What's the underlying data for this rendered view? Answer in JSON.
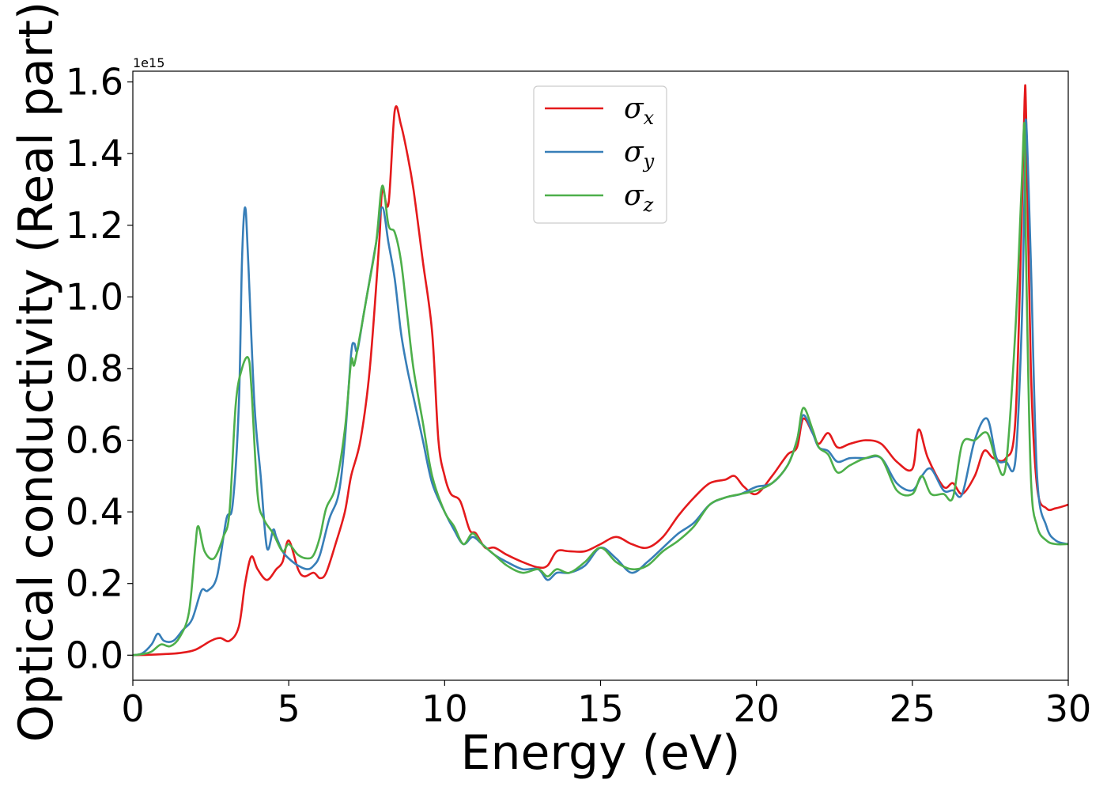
{
  "chart_data": {
    "type": "line",
    "xlabel": "Energy (eV)",
    "ylabel": "Optical conductivity (Real part)",
    "y_offset_label": "1e15",
    "xlim": [
      0,
      30
    ],
    "ylim": [
      -0.07,
      1.63
    ],
    "xticks": [
      0,
      5,
      10,
      15,
      20,
      25,
      30
    ],
    "xtick_labels": [
      "0",
      "5",
      "10",
      "15",
      "20",
      "25",
      "30"
    ],
    "yticks": [
      0.0,
      0.2,
      0.4,
      0.6,
      0.8,
      1.0,
      1.2,
      1.4,
      1.6
    ],
    "ytick_labels": [
      "0.0",
      "0.2",
      "0.4",
      "0.6",
      "0.8",
      "1.0",
      "1.2",
      "1.4",
      "1.6"
    ],
    "grid": false,
    "legend_position": "top-center",
    "series": [
      {
        "name": "σx",
        "symbol": "σ",
        "subscript": "x",
        "color": "#e41a1c",
        "x": [
          0,
          0.5,
          1,
          1.5,
          2,
          2.5,
          2.8,
          3.1,
          3.4,
          3.6,
          3.8,
          4.0,
          4.3,
          4.6,
          4.8,
          5.0,
          5.3,
          5.5,
          5.8,
          6.0,
          6.2,
          6.5,
          6.8,
          7.0,
          7.3,
          7.6,
          7.9,
          8.0,
          8.2,
          8.4,
          8.6,
          8.8,
          9.0,
          9.3,
          9.6,
          9.8,
          10.0,
          10.2,
          10.5,
          10.8,
          11.0,
          11.3,
          11.6,
          12.0,
          12.5,
          13.0,
          13.3,
          13.6,
          14.0,
          14.5,
          15.0,
          15.5,
          16.0,
          16.5,
          17.0,
          17.5,
          18.0,
          18.5,
          19.0,
          19.3,
          19.6,
          20.0,
          20.5,
          21.0,
          21.3,
          21.5,
          21.8,
          22.0,
          22.3,
          22.6,
          23.0,
          23.5,
          24.0,
          24.5,
          25.0,
          25.2,
          25.5,
          26.0,
          26.3,
          26.6,
          27.0,
          27.3,
          27.6,
          28.0,
          28.3,
          28.5,
          28.6,
          28.65,
          28.8,
          29.0,
          29.3,
          29.6,
          30.0
        ],
        "y": [
          0,
          0.001,
          0.003,
          0.006,
          0.015,
          0.04,
          0.048,
          0.04,
          0.08,
          0.2,
          0.275,
          0.24,
          0.21,
          0.24,
          0.26,
          0.32,
          0.24,
          0.22,
          0.23,
          0.215,
          0.23,
          0.31,
          0.4,
          0.5,
          0.6,
          0.8,
          1.15,
          1.3,
          1.26,
          1.52,
          1.48,
          1.4,
          1.3,
          1.1,
          0.9,
          0.6,
          0.5,
          0.45,
          0.43,
          0.35,
          0.34,
          0.3,
          0.3,
          0.28,
          0.26,
          0.245,
          0.25,
          0.29,
          0.29,
          0.29,
          0.31,
          0.33,
          0.31,
          0.3,
          0.33,
          0.39,
          0.44,
          0.48,
          0.49,
          0.5,
          0.47,
          0.45,
          0.5,
          0.56,
          0.58,
          0.66,
          0.62,
          0.59,
          0.62,
          0.58,
          0.59,
          0.6,
          0.59,
          0.54,
          0.52,
          0.63,
          0.55,
          0.47,
          0.48,
          0.45,
          0.5,
          0.57,
          0.55,
          0.55,
          0.65,
          1.2,
          1.55,
          1.5,
          0.8,
          0.47,
          0.41,
          0.41,
          0.42
        ]
      },
      {
        "name": "σy",
        "symbol": "σ",
        "subscript": "y",
        "color": "#377eb8",
        "x": [
          0,
          0.3,
          0.6,
          0.8,
          1.0,
          1.3,
          1.6,
          1.9,
          2.2,
          2.4,
          2.7,
          3.0,
          3.2,
          3.4,
          3.5,
          3.6,
          3.7,
          3.9,
          4.1,
          4.3,
          4.5,
          4.6,
          4.8,
          5.0,
          5.3,
          5.6,
          5.8,
          6.0,
          6.3,
          6.6,
          6.8,
          7.0,
          7.1,
          7.2,
          7.4,
          7.6,
          7.8,
          8.0,
          8.2,
          8.4,
          8.6,
          8.8,
          9.0,
          9.3,
          9.6,
          10.0,
          10.3,
          10.6,
          10.9,
          11.2,
          11.6,
          12.0,
          12.5,
          13.0,
          13.3,
          13.6,
          14.0,
          14.5,
          15.0,
          15.5,
          16.0,
          16.5,
          17.0,
          17.5,
          18.0,
          18.5,
          19.0,
          19.5,
          20.0,
          20.5,
          21.0,
          21.3,
          21.5,
          21.8,
          22.0,
          22.3,
          22.6,
          23.0,
          23.5,
          24.0,
          24.5,
          25.0,
          25.3,
          25.6,
          26.0,
          26.3,
          26.6,
          27.0,
          27.4,
          27.7,
          28.0,
          28.3,
          28.5,
          28.6,
          28.65,
          28.8,
          29.0,
          29.3,
          29.6,
          30.0
        ],
        "y": [
          0,
          0.005,
          0.03,
          0.06,
          0.04,
          0.04,
          0.07,
          0.1,
          0.18,
          0.18,
          0.22,
          0.38,
          0.42,
          0.7,
          1.1,
          1.25,
          1.1,
          0.7,
          0.5,
          0.3,
          0.35,
          0.33,
          0.29,
          0.27,
          0.25,
          0.24,
          0.25,
          0.28,
          0.38,
          0.45,
          0.6,
          0.84,
          0.87,
          0.85,
          0.95,
          1.05,
          1.15,
          1.25,
          1.15,
          1.05,
          0.9,
          0.8,
          0.72,
          0.6,
          0.48,
          0.4,
          0.35,
          0.31,
          0.33,
          0.31,
          0.28,
          0.26,
          0.24,
          0.24,
          0.21,
          0.23,
          0.23,
          0.25,
          0.3,
          0.27,
          0.23,
          0.26,
          0.3,
          0.34,
          0.37,
          0.42,
          0.44,
          0.45,
          0.47,
          0.48,
          0.53,
          0.6,
          0.67,
          0.62,
          0.58,
          0.57,
          0.54,
          0.55,
          0.55,
          0.55,
          0.48,
          0.46,
          0.5,
          0.52,
          0.46,
          0.46,
          0.45,
          0.6,
          0.66,
          0.55,
          0.54,
          0.54,
          0.9,
          1.3,
          1.49,
          1.1,
          0.5,
          0.36,
          0.32,
          0.31
        ]
      },
      {
        "name": "σz",
        "symbol": "σ",
        "subscript": "z",
        "color": "#4daf4a",
        "x": [
          0,
          0.3,
          0.6,
          0.9,
          1.2,
          1.5,
          1.8,
          2.0,
          2.1,
          2.3,
          2.6,
          2.9,
          3.1,
          3.3,
          3.5,
          3.7,
          3.8,
          4.0,
          4.2,
          4.5,
          4.8,
          5.0,
          5.3,
          5.6,
          5.8,
          6.0,
          6.2,
          6.5,
          6.8,
          7.0,
          7.1,
          7.3,
          7.5,
          7.8,
          8.0,
          8.2,
          8.4,
          8.6,
          8.8,
          9.0,
          9.3,
          9.6,
          10.0,
          10.3,
          10.6,
          10.9,
          11.2,
          11.6,
          12.0,
          12.5,
          13.0,
          13.3,
          13.6,
          14.0,
          14.5,
          15.0,
          15.5,
          16.0,
          16.5,
          17.0,
          17.5,
          18.0,
          18.5,
          19.0,
          19.5,
          20.0,
          20.5,
          21.0,
          21.3,
          21.5,
          21.8,
          22.0,
          22.3,
          22.6,
          23.0,
          23.5,
          24.0,
          24.5,
          25.0,
          25.3,
          25.6,
          26.0,
          26.3,
          26.6,
          27.0,
          27.4,
          27.7,
          28.0,
          28.3,
          28.5,
          28.6,
          28.65,
          28.8,
          29.0,
          29.3,
          29.6,
          30.0
        ],
        "y": [
          0,
          0.003,
          0.01,
          0.03,
          0.025,
          0.05,
          0.12,
          0.3,
          0.36,
          0.29,
          0.27,
          0.33,
          0.4,
          0.7,
          0.8,
          0.83,
          0.75,
          0.45,
          0.38,
          0.34,
          0.29,
          0.31,
          0.28,
          0.27,
          0.28,
          0.33,
          0.41,
          0.47,
          0.63,
          0.82,
          0.81,
          0.9,
          1.0,
          1.15,
          1.31,
          1.2,
          1.18,
          1.1,
          0.95,
          0.8,
          0.65,
          0.5,
          0.4,
          0.36,
          0.31,
          0.34,
          0.31,
          0.28,
          0.25,
          0.23,
          0.24,
          0.22,
          0.24,
          0.23,
          0.26,
          0.3,
          0.26,
          0.24,
          0.25,
          0.29,
          0.32,
          0.36,
          0.42,
          0.44,
          0.45,
          0.46,
          0.48,
          0.53,
          0.6,
          0.69,
          0.63,
          0.58,
          0.56,
          0.51,
          0.53,
          0.55,
          0.55,
          0.46,
          0.45,
          0.5,
          0.45,
          0.45,
          0.44,
          0.59,
          0.6,
          0.62,
          0.54,
          0.53,
          0.9,
          1.3,
          1.48,
          1.1,
          0.5,
          0.36,
          0.32,
          0.31,
          0.31
        ]
      }
    ]
  }
}
